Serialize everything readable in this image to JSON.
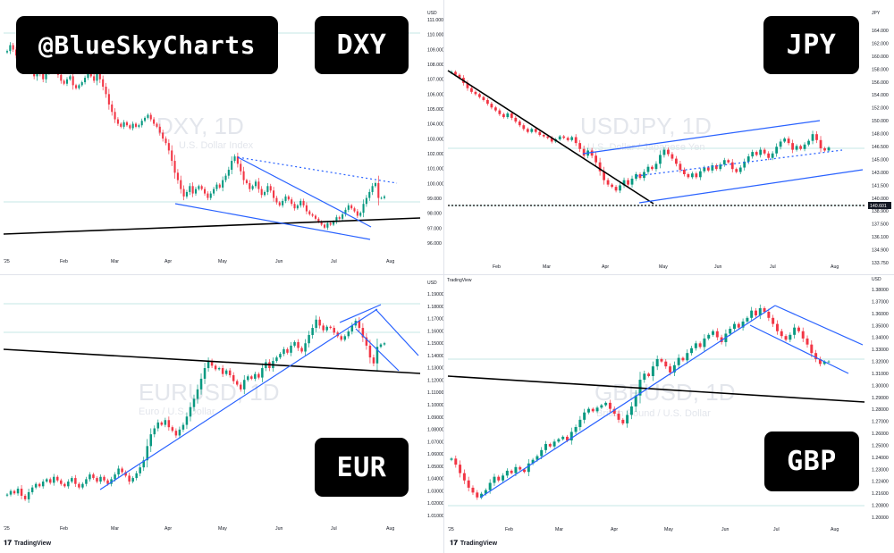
{
  "handle": "@BlueSkyCharts",
  "tv_logo": "TradingView",
  "panels": [
    {
      "id": "dxy",
      "badge": "DXY",
      "watermark_title": "DXY, 1D",
      "watermark_sub": "U.S. Dollar Index",
      "currency": "USD",
      "ticks": [
        "111.000",
        "110.000",
        "109.000",
        "108.000",
        "107.000",
        "106.000",
        "105.000",
        "104.000",
        "103.000",
        "102.000",
        "101.000",
        "100.000",
        "99.000",
        "98.000",
        "97.000",
        "96.000"
      ],
      "months": [
        "'25",
        "Feb",
        "Mar",
        "Apr",
        "May",
        "Jun",
        "Jul",
        "Aug"
      ],
      "chart_data": {
        "type": "candlestick",
        "ylim": [
          95.0,
          111.5
        ],
        "close": [
          108.9,
          109.3,
          109.0,
          108.6,
          108.4,
          108.0,
          107.7,
          107.9,
          107.6,
          107.2,
          107.8,
          107.4,
          107.0,
          107.5,
          107.9,
          108.2,
          107.7,
          107.3,
          106.9,
          106.7,
          107.0,
          107.2,
          106.6,
          106.4,
          106.6,
          106.8,
          107.1,
          107.4,
          107.2,
          106.9,
          107.5,
          107.0,
          106.5,
          106.0,
          105.3,
          104.8,
          104.3,
          104.0,
          103.8,
          104.1,
          103.9,
          103.7,
          104.0,
          103.8,
          103.9,
          104.2,
          104.4,
          104.6,
          104.3,
          104.0,
          103.8,
          103.4,
          103.0,
          102.7,
          102.2,
          101.5,
          100.7,
          100.2,
          99.6,
          99.1,
          99.4,
          99.8,
          99.3,
          99.6,
          99.8,
          99.6,
          99.3,
          99.0,
          99.3,
          99.6,
          99.9,
          99.7,
          100.2,
          100.5,
          100.9,
          101.5,
          101.8,
          101.3,
          100.8,
          100.2,
          100.0,
          99.6,
          99.8,
          100.1,
          99.6,
          99.2,
          99.4,
          99.8,
          99.5,
          99.0,
          98.7,
          98.5,
          98.8,
          99.1,
          98.9,
          98.6,
          98.3,
          98.5,
          98.8,
          98.5,
          98.1,
          97.9,
          97.8,
          97.6,
          97.4,
          97.2,
          97.0,
          97.3,
          97.2,
          97.4,
          97.7,
          97.6,
          97.9,
          98.2,
          98.5,
          98.3,
          98.1,
          97.8,
          98.0,
          98.6,
          99.0,
          99.4,
          99.8,
          100.0,
          99.0,
          99.0,
          99.1
        ]
      }
    },
    {
      "id": "jpy",
      "badge": "JPY",
      "watermark_title": "USDJPY, 1D",
      "watermark_sub": "U.S. Dollar / Japanese Yen",
      "currency": "JPY",
      "price_tag": "140.601",
      "ticks": [
        "164.000",
        "162.000",
        "160.000",
        "158.000",
        "156.000",
        "154.000",
        "152.000",
        "150.000",
        "148.000",
        "146.500",
        "145.000",
        "143.000",
        "141.500",
        "140.000",
        "138.900",
        "137.500",
        "136.100",
        "134.900",
        "133.750"
      ],
      "months": [
        "Feb",
        "Mar",
        "Apr",
        "May",
        "Jun",
        "Jul",
        "Aug"
      ],
      "chart_data": {
        "type": "candlestick",
        "ylim": [
          133.0,
          166.0
        ],
        "close": [
          158.0,
          157.6,
          157.2,
          156.5,
          155.8,
          155.3,
          155.0,
          154.6,
          154.2,
          153.7,
          153.2,
          152.8,
          152.3,
          151.9,
          152.4,
          151.8,
          151.3,
          150.8,
          150.3,
          149.9,
          150.3,
          149.9,
          149.5,
          149.3,
          149.1,
          148.6,
          148.9,
          149.3,
          149.1,
          148.8,
          149.2,
          148.4,
          147.6,
          146.7,
          147.4,
          146.7,
          145.8,
          144.6,
          143.4,
          142.8,
          142.5,
          142.0,
          142.7,
          143.4,
          142.8,
          143.6,
          144.2,
          143.7,
          144.5,
          145.2,
          144.9,
          145.6,
          146.8,
          147.5,
          146.9,
          146.3,
          145.6,
          144.8,
          144.2,
          143.8,
          144.3,
          143.8,
          144.6,
          145.1,
          144.7,
          145.4,
          144.9,
          145.5,
          146.1,
          145.8,
          144.9,
          144.5,
          145.1,
          145.9,
          146.6,
          147.2,
          146.8,
          147.5,
          147.0,
          146.4,
          147.0,
          147.9,
          148.6,
          149.0,
          148.4,
          147.5,
          148.0,
          147.6,
          148.2,
          148.7,
          149.6,
          148.8,
          147.7,
          147.4,
          147.8
        ]
      }
    },
    {
      "id": "eur",
      "badge": "EUR",
      "watermark_title": "EURUSD, 1D",
      "watermark_sub": "Euro / U.S. Dollar",
      "currency": "USD",
      "ticks": [
        "1.19000",
        "1.18000",
        "1.17000",
        "1.16000",
        "1.15000",
        "1.14000",
        "1.13000",
        "1.12000",
        "1.11000",
        "1.10000",
        "1.09000",
        "1.08000",
        "1.07000",
        "1.06000",
        "1.05000",
        "1.04000",
        "1.03000",
        "1.02000",
        "1.01000"
      ],
      "months": [
        "'25",
        "Feb",
        "Mar",
        "Apr",
        "May",
        "Jun",
        "Jul",
        "Aug"
      ],
      "chart_data": {
        "type": "candlestick",
        "ylim": [
          1.003,
          1.198
        ],
        "close": [
          1.029,
          1.032,
          1.03,
          1.034,
          1.028,
          1.025,
          1.031,
          1.035,
          1.038,
          1.036,
          1.04,
          1.042,
          1.039,
          1.044,
          1.041,
          1.038,
          1.036,
          1.04,
          1.043,
          1.038,
          1.035,
          1.038,
          1.042,
          1.046,
          1.043,
          1.04,
          1.044,
          1.041,
          1.038,
          1.042,
          1.046,
          1.051,
          1.048,
          1.045,
          1.04,
          1.043,
          1.047,
          1.052,
          1.058,
          1.07,
          1.08,
          1.085,
          1.09,
          1.088,
          1.092,
          1.086,
          1.083,
          1.079,
          1.084,
          1.088,
          1.095,
          1.103,
          1.11,
          1.118,
          1.127,
          1.136,
          1.142,
          1.138,
          1.135,
          1.136,
          1.131,
          1.134,
          1.13,
          1.125,
          1.122,
          1.118,
          1.126,
          1.129,
          1.127,
          1.131,
          1.128,
          1.136,
          1.141,
          1.136,
          1.142,
          1.145,
          1.148,
          1.152,
          1.149,
          1.155,
          1.158,
          1.153,
          1.15,
          1.157,
          1.164,
          1.17,
          1.177,
          1.172,
          1.168,
          1.171,
          1.17,
          1.166,
          1.163,
          1.16,
          1.163,
          1.167,
          1.172,
          1.176,
          1.17,
          1.162,
          1.155,
          1.145,
          1.14,
          1.154,
          1.156,
          1.157
        ]
      }
    },
    {
      "id": "gbp",
      "badge": "GBP",
      "watermark_title": "GBPUSD, 1D",
      "watermark_sub": "British Pound / U.S. Dollar",
      "currency": "USD",
      "tv_small": "TradingView",
      "ticks": [
        "1.38000",
        "1.37000",
        "1.36000",
        "1.35000",
        "1.34000",
        "1.33000",
        "1.32000",
        "1.31000",
        "1.30000",
        "1.29000",
        "1.28000",
        "1.27000",
        "1.26000",
        "1.25000",
        "1.24000",
        "1.23000",
        "1.22400",
        "1.21600",
        "1.20800",
        "1.20000"
      ],
      "months": [
        "'25",
        "Feb",
        "Mar",
        "Apr",
        "May",
        "Jun",
        "Jul",
        "Aug"
      ],
      "chart_data": {
        "type": "candlestick",
        "ylim": [
          1.195,
          1.385
        ],
        "close": [
          1.25,
          1.245,
          1.238,
          1.232,
          1.226,
          1.222,
          1.218,
          1.221,
          1.224,
          1.23,
          1.235,
          1.232,
          1.236,
          1.24,
          1.238,
          1.243,
          1.241,
          1.239,
          1.246,
          1.249,
          1.252,
          1.257,
          1.262,
          1.26,
          1.264,
          1.266,
          1.268,
          1.265,
          1.272,
          1.276,
          1.282,
          1.288,
          1.291,
          1.289,
          1.292,
          1.294,
          1.296,
          1.291,
          1.287,
          1.282,
          1.279,
          1.286,
          1.293,
          1.302,
          1.315,
          1.32,
          1.318,
          1.326,
          1.332,
          1.33,
          1.326,
          1.321,
          1.327,
          1.333,
          1.331,
          1.337,
          1.341,
          1.345,
          1.342,
          1.349,
          1.352,
          1.355,
          1.35,
          1.346,
          1.353,
          1.357,
          1.361,
          1.358,
          1.363,
          1.366,
          1.372,
          1.368,
          1.374,
          1.371,
          1.366,
          1.361,
          1.355,
          1.351,
          1.348,
          1.352,
          1.358,
          1.355,
          1.349,
          1.344,
          1.337,
          1.332,
          1.328,
          1.33,
          1.33
        ]
      }
    }
  ]
}
